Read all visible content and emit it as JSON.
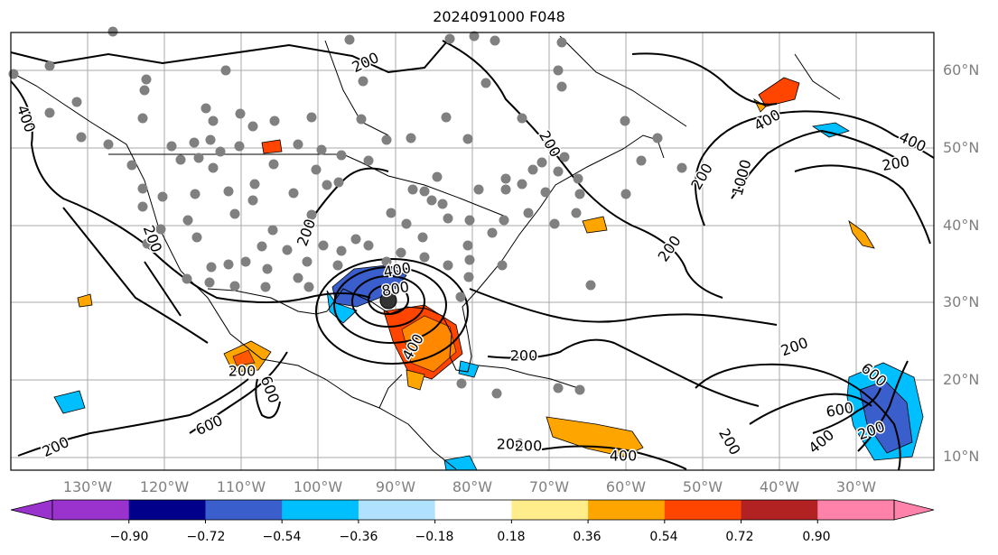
{
  "title": "2024091000 F048",
  "map": {
    "lat_labels": [
      "60°N",
      "50°N",
      "40°N",
      "30°N",
      "20°N",
      "10°N"
    ],
    "lon_labels": [
      "130°W",
      "120°W",
      "110°W",
      "100°W",
      "90°W",
      "80°W",
      "70°W",
      "60°W",
      "50°W",
      "40°W",
      "30°W"
    ],
    "contour_color": "#000000",
    "contour_labels": [
      "400",
      "200",
      "200",
      "400",
      "200",
      "600",
      "200",
      "600",
      "200",
      "400",
      "200",
      "200",
      "400",
      "200",
      "200",
      "1000",
      "400",
      "200",
      "200",
      "200",
      "400",
      "600",
      "200",
      "200",
      "600",
      "400",
      "800",
      "200"
    ],
    "observation_marker_color": "#808080"
  },
  "colorbar": {
    "colors": [
      "#9a32cd",
      "#00008b",
      "#3a5fcd",
      "#00bfff",
      "#b0e2ff",
      "#ffffff",
      "#ffec8b",
      "#ffa500",
      "#ff4500",
      "#b22222",
      "#ff82ab"
    ],
    "over_color": "#ff82ab",
    "under_color": "#9a32cd",
    "ticks": [
      "−0.90",
      "−0.72",
      "−0.54",
      "−0.36",
      "−0.18",
      "0.18",
      "0.36",
      "0.54",
      "0.72",
      "0.90"
    ]
  }
}
